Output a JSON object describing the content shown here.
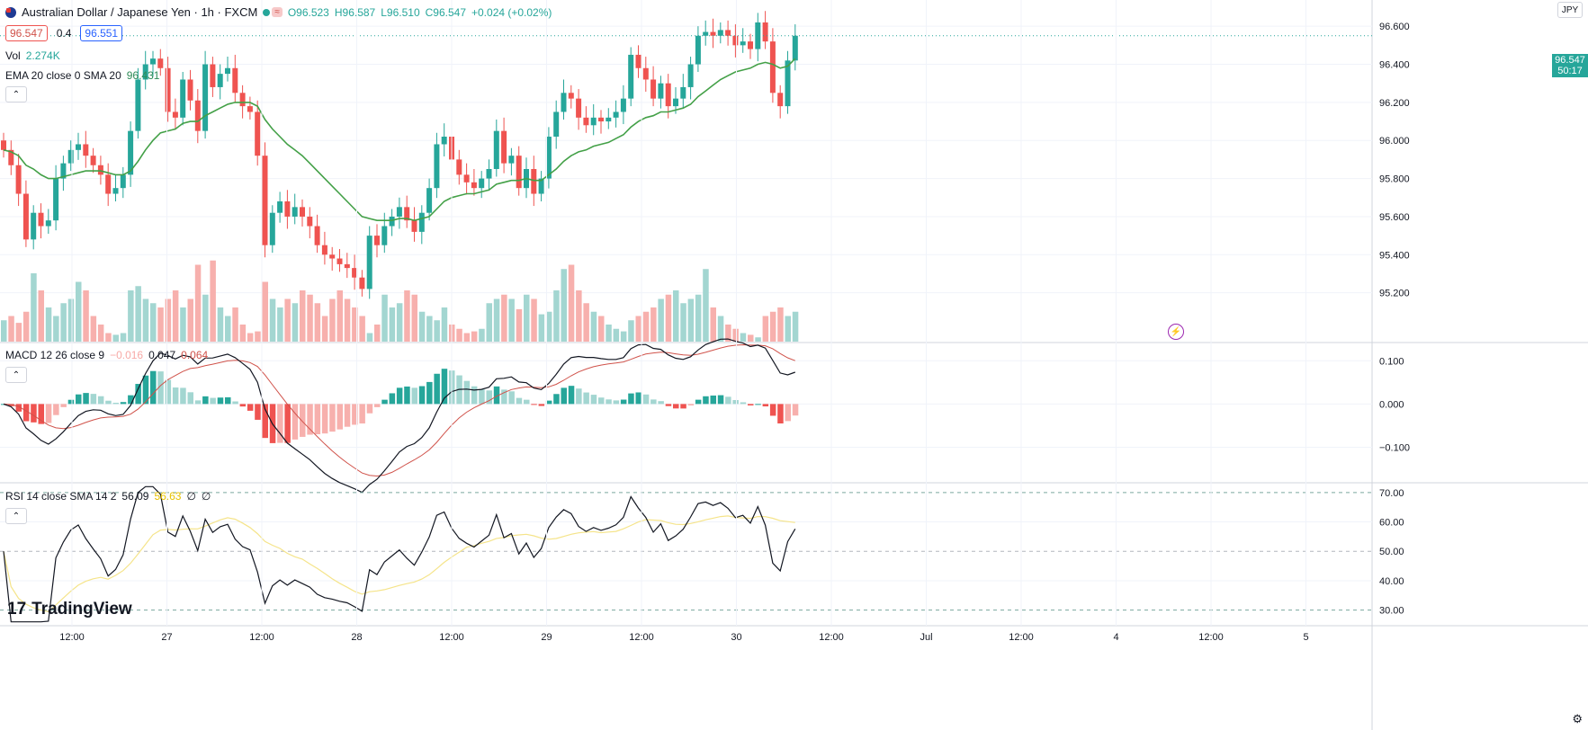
{
  "header": {
    "symbol_title": "Australian Dollar / Japanese Yen · 1h · FXCM",
    "ohlc": {
      "o": "O96.523",
      "h": "H96.587",
      "l": "L96.510",
      "c": "C96.547",
      "chg": "+0.024 (+0.02%)"
    },
    "bid": "96.547",
    "spread": "0.4",
    "ask": "96.551",
    "currency": "JPY"
  },
  "legends": {
    "vol": {
      "label": "Vol",
      "value": "2.274K"
    },
    "ema": {
      "label": "EMA 20 close 0 SMA 20",
      "value": "96.431"
    },
    "macd": {
      "label": "MACD 12 26 close 9",
      "hist": "−0.016",
      "macd": "0.047",
      "signal": "0.064"
    },
    "rsi": {
      "label": "RSI 14 close SMA 14 2",
      "rsi": "56.09",
      "sma": "56.63",
      "extra1": "∅",
      "extra2": "∅"
    }
  },
  "price_tag": {
    "price": "96.547",
    "countdown": "50:17"
  },
  "logo_text": "TradingView",
  "colors": {
    "up": "#26a69a",
    "down": "#ef5350",
    "ema": "#43a047",
    "macd": "#131722",
    "signal": "#d0524a",
    "rsi": "#131722",
    "rsi_sma": "#f5e48a"
  },
  "icons": {
    "collapse": "chevron-up-icon",
    "lightning": "lightning-icon",
    "settings": "gear-icon",
    "flag": "au-flag-icon"
  },
  "chart_data": [
    {
      "type": "candlestick",
      "title": "Australian Dollar / Japanese Yen · 1h · FXCM",
      "ylim": [
        95.0,
        96.7
      ],
      "y_ticks": [
        95.2,
        95.4,
        95.6,
        95.8,
        96.0,
        96.2,
        96.4,
        96.6
      ],
      "y_tick_labels": [
        "95.200",
        "95.400",
        "95.600",
        "95.800",
        "96.000",
        "96.200",
        "96.400",
        "96.600"
      ],
      "x_tick_labels": [
        "12:00",
        "27",
        "12:00",
        "28",
        "12:00",
        "29",
        "12:00",
        "30",
        "12:00",
        "Jul",
        "12:00",
        "4",
        "12:00",
        "5"
      ],
      "closes": [
        95.95,
        95.87,
        95.72,
        95.48,
        95.62,
        95.55,
        95.58,
        95.8,
        95.88,
        95.95,
        95.98,
        95.92,
        95.87,
        95.82,
        95.72,
        95.75,
        95.82,
        96.05,
        96.32,
        96.4,
        96.43,
        96.38,
        96.15,
        96.12,
        96.32,
        96.21,
        96.05,
        96.4,
        96.28,
        96.35,
        96.38,
        96.25,
        96.18,
        96.15,
        95.92,
        95.45,
        95.62,
        95.68,
        95.6,
        95.65,
        95.6,
        95.55,
        95.45,
        95.4,
        95.38,
        95.35,
        95.33,
        95.28,
        95.22,
        95.5,
        95.45,
        95.55,
        95.6,
        95.65,
        95.58,
        95.52,
        95.62,
        95.75,
        95.98,
        96.02,
        95.9,
        95.82,
        95.78,
        95.75,
        95.8,
        95.85,
        96.05,
        95.88,
        95.92,
        95.75,
        95.85,
        95.72,
        95.8,
        96.02,
        96.15,
        96.25,
        96.22,
        96.12,
        96.08,
        96.12,
        96.1,
        96.12,
        96.15,
        96.22,
        96.45,
        96.38,
        96.32,
        96.22,
        96.3,
        96.18,
        96.22,
        96.28,
        96.4,
        96.55,
        96.57,
        96.55,
        96.58,
        96.55,
        96.5,
        96.52,
        96.48,
        96.62,
        96.52,
        96.25,
        96.18,
        96.42,
        96.55
      ],
      "ema": [
        95.95,
        95.94,
        95.92,
        95.87,
        95.85,
        95.82,
        95.8,
        95.8,
        95.81,
        95.82,
        95.83,
        95.84,
        95.84,
        95.84,
        95.83,
        95.82,
        95.82,
        95.84,
        95.89,
        95.95,
        96.0,
        96.04,
        96.05,
        96.06,
        96.09,
        96.1,
        96.1,
        96.13,
        96.15,
        96.17,
        96.19,
        96.2,
        96.2,
        96.2,
        96.18,
        96.11,
        96.06,
        96.02,
        95.98,
        95.95,
        95.92,
        95.88,
        95.84,
        95.8,
        95.76,
        95.72,
        95.68,
        95.64,
        95.6,
        95.59,
        95.58,
        95.58,
        95.58,
        95.59,
        95.59,
        95.58,
        95.59,
        95.6,
        95.64,
        95.68,
        95.7,
        95.71,
        95.72,
        95.72,
        95.73,
        95.74,
        95.77,
        95.78,
        95.79,
        95.79,
        95.8,
        95.79,
        95.79,
        95.82,
        95.85,
        95.89,
        95.92,
        95.94,
        95.95,
        95.97,
        95.98,
        95.99,
        96.01,
        96.03,
        96.07,
        96.1,
        96.12,
        96.13,
        96.15,
        96.15,
        96.16,
        96.17,
        96.19,
        96.23,
        96.26,
        96.29,
        96.32,
        96.34,
        96.36,
        96.37,
        96.38,
        96.4,
        96.41,
        96.4,
        96.38,
        96.39,
        96.43
      ]
    },
    {
      "type": "bar",
      "title": "Vol",
      "values_relative": [
        0.25,
        0.3,
        0.22,
        0.35,
        0.8,
        0.6,
        0.4,
        0.3,
        0.45,
        0.5,
        0.7,
        0.6,
        0.3,
        0.2,
        0.1,
        0.08,
        0.1,
        0.6,
        0.65,
        0.5,
        0.45,
        0.4,
        0.5,
        0.6,
        0.4,
        0.5,
        0.9,
        0.55,
        0.95,
        0.4,
        0.3,
        0.4,
        0.2,
        0.1,
        0.12,
        0.7,
        0.5,
        0.4,
        0.5,
        0.45,
        0.6,
        0.55,
        0.45,
        0.3,
        0.5,
        0.6,
        0.5,
        0.4,
        0.3,
        0.1,
        0.2,
        0.55,
        0.4,
        0.45,
        0.6,
        0.55,
        0.35,
        0.3,
        0.25,
        0.4,
        0.2,
        0.15,
        0.1,
        0.12,
        0.15,
        0.45,
        0.5,
        0.55,
        0.5,
        0.38,
        0.55,
        0.5,
        0.32,
        0.35,
        0.6,
        0.85,
        0.9,
        0.6,
        0.45,
        0.35,
        0.3,
        0.2,
        0.15,
        0.12,
        0.25,
        0.3,
        0.35,
        0.4,
        0.5,
        0.55,
        0.6,
        0.45,
        0.5,
        0.55,
        0.85,
        0.4,
        0.3,
        0.2,
        0.15,
        0.1,
        0.08,
        0.05,
        0.3,
        0.35,
        0.4,
        0.3,
        0.35
      ]
    },
    {
      "type": "line",
      "title": "MACD 12 26 close 9",
      "ylim": [
        -0.18,
        0.14
      ],
      "y_ticks": [
        0.1,
        0.0,
        -0.1
      ],
      "y_tick_labels": [
        "0.100",
        "0.000",
        "−0.100"
      ]
    },
    {
      "type": "line",
      "title": "RSI 14 close SMA 14 2",
      "ylim": [
        25,
        73
      ],
      "y_ticks": [
        70,
        60,
        50,
        40,
        30
      ],
      "y_tick_labels": [
        "70.00",
        "60.00",
        "50.00",
        "40.00",
        "30.00"
      ]
    }
  ]
}
